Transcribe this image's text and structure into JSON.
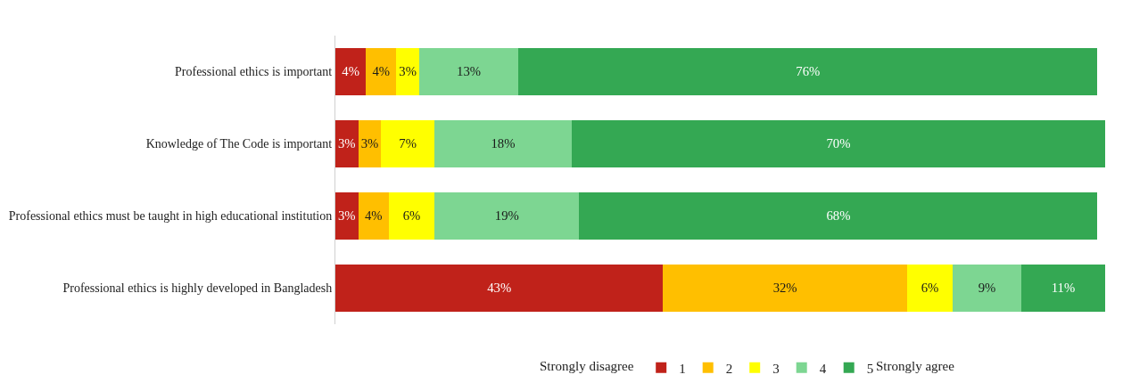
{
  "chart_data": {
    "type": "bar",
    "orientation": "horizontal",
    "stacked": true,
    "categories": [
      "Professional ethics is important",
      "Knowledge of The Code is important",
      "Professional ethics must be taught in high educational institution",
      "Professional ethics is highly developed in Bangladesh"
    ],
    "series": [
      {
        "name": "1",
        "color": "#c0221a",
        "values": [
          4,
          3,
          3,
          43
        ],
        "value_labels": [
          "4%",
          "3%",
          "3%",
          "43%"
        ]
      },
      {
        "name": "2",
        "color": "#ffbf00",
        "values": [
          4,
          3,
          4,
          32
        ],
        "value_labels": [
          "4%",
          "3%",
          "4%",
          "32%"
        ]
      },
      {
        "name": "3",
        "color": "#ffff00",
        "values": [
          3,
          7,
          6,
          6
        ],
        "value_labels": [
          "3%",
          "7%",
          "6%",
          "6%"
        ]
      },
      {
        "name": "4",
        "color": "#7dd692",
        "values": [
          13,
          18,
          19,
          9
        ],
        "value_labels": [
          "13%",
          "18%",
          "19%",
          "9%"
        ]
      },
      {
        "name": "5",
        "color": "#34a853",
        "values": [
          76,
          70,
          68,
          11
        ],
        "value_labels": [
          "76%",
          "70%",
          "68%",
          "11%"
        ]
      }
    ],
    "annotations": [
      "Strongly disagree",
      "Strongly agree"
    ],
    "legend": "bottom",
    "tick_labels": "y"
  }
}
